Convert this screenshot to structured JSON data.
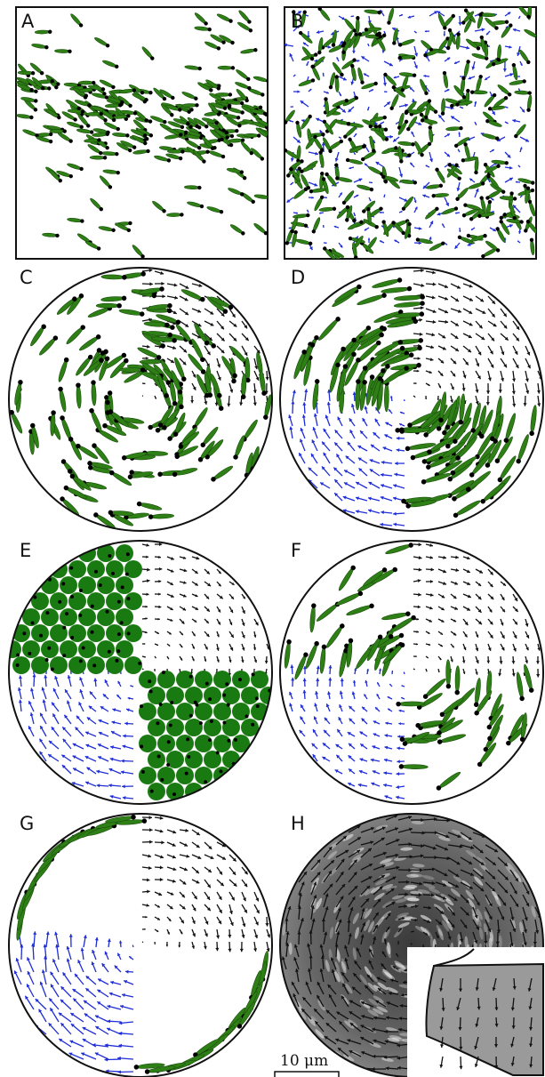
{
  "panels": [
    {
      "id": "A",
      "label": "A"
    },
    {
      "id": "B",
      "label": "B"
    },
    {
      "id": "C",
      "label": "C"
    },
    {
      "id": "D",
      "label": "D"
    },
    {
      "id": "E",
      "label": "E"
    },
    {
      "id": "F",
      "label": "F"
    },
    {
      "id": "G",
      "label": "G"
    },
    {
      "id": "H",
      "label": "H"
    }
  ],
  "scale_bar": {
    "label": "10 μm"
  },
  "colors": {
    "rod": "#2f7f17",
    "rod_dark": "#1a4d0c",
    "disk": "#1a7a12",
    "arrow_black": "#111111",
    "arrow_blue": "#1f2dd6",
    "frame": "#111111"
  }
}
